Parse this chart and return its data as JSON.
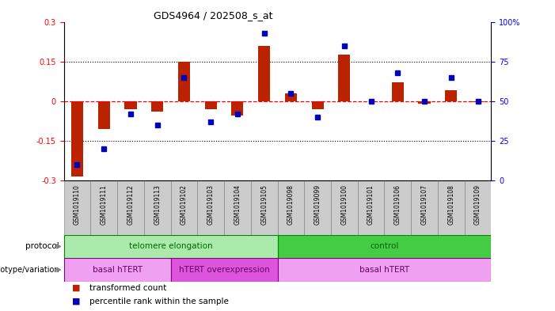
{
  "title": "GDS4964 / 202508_s_at",
  "samples": [
    "GSM1019110",
    "GSM1019111",
    "GSM1019112",
    "GSM1019113",
    "GSM1019102",
    "GSM1019103",
    "GSM1019104",
    "GSM1019105",
    "GSM1019098",
    "GSM1019099",
    "GSM1019100",
    "GSM1019101",
    "GSM1019106",
    "GSM1019107",
    "GSM1019108",
    "GSM1019109"
  ],
  "red_values": [
    -0.285,
    -0.105,
    -0.03,
    -0.04,
    0.15,
    -0.03,
    -0.055,
    0.21,
    0.03,
    -0.03,
    0.175,
    0.0,
    0.07,
    -0.01,
    0.04,
    -0.005
  ],
  "blue_values": [
    10,
    20,
    42,
    35,
    65,
    37,
    42,
    93,
    55,
    40,
    85,
    50,
    68,
    50,
    65,
    50
  ],
  "ylim_left": [
    -0.3,
    0.3
  ],
  "ylim_right": [
    0,
    100
  ],
  "yticks_left": [
    -0.3,
    -0.15,
    0.0,
    0.15,
    0.3
  ],
  "ytick_labels_left": [
    "-0.3",
    "-0.15",
    "0",
    "0.15",
    "0.3"
  ],
  "yticks_right": [
    0,
    25,
    50,
    75,
    100
  ],
  "ytick_labels_right": [
    "0",
    "25",
    "50",
    "75",
    "100%"
  ],
  "protocol_groups": [
    {
      "label": "telomere elongation",
      "start": 0,
      "end": 8,
      "color": "#aaeaaa"
    },
    {
      "label": "control",
      "start": 8,
      "end": 16,
      "color": "#44cc44"
    }
  ],
  "genotype_groups": [
    {
      "label": "basal hTERT",
      "start": 0,
      "end": 4,
      "color": "#f0a0f0"
    },
    {
      "label": "hTERT overexpression",
      "start": 4,
      "end": 8,
      "color": "#dd55dd"
    },
    {
      "label": "basal hTERT",
      "start": 8,
      "end": 16,
      "color": "#f0a0f0"
    }
  ],
  "legend_red": "transformed count",
  "legend_blue": "percentile rank within the sample",
  "bar_color": "#bb2200",
  "dot_color": "#0000bb",
  "background_color": "#ffffff",
  "plot_bg": "#ffffff",
  "sample_box_color": "#cccccc",
  "proto_label_color": "#006600",
  "geno_label_color": "#660066"
}
